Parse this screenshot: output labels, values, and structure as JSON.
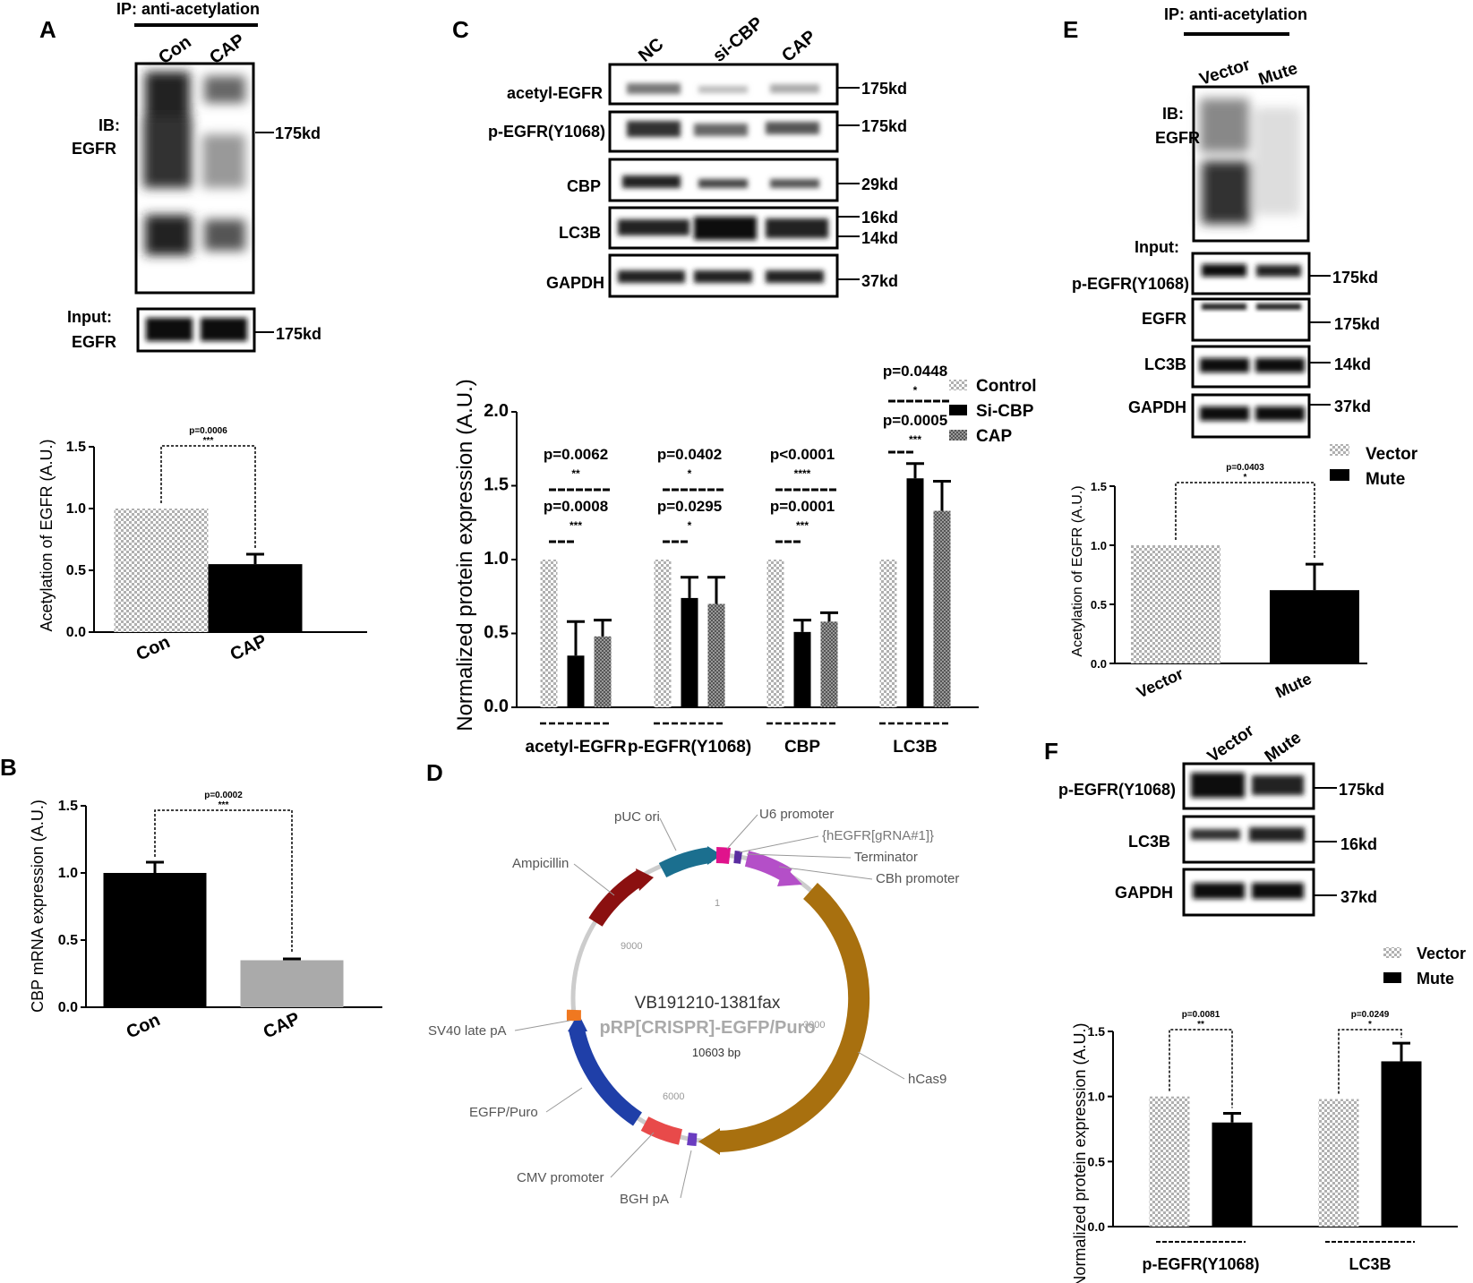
{
  "panel_letters": [
    "A",
    "B",
    "C",
    "D",
    "E",
    "F"
  ],
  "panelA": {
    "ip_title": "IP: anti-acetylation",
    "lanes": [
      "Con",
      "CAP"
    ],
    "ib_label": [
      "IB:",
      "EGFR"
    ],
    "ib_kd": "175kd",
    "input_label": [
      "Input:",
      "EGFR"
    ],
    "input_kd": "175kd"
  },
  "panelC": {
    "lanes": [
      "NC",
      "si-CBP",
      "CAP"
    ],
    "blots": [
      {
        "label": "acetyl-EGFR",
        "kd": [
          "175kd"
        ]
      },
      {
        "label": "p-EGFR(Y1068)",
        "kd": [
          "175kd"
        ]
      },
      {
        "label": "CBP",
        "kd": [
          "29kd"
        ]
      },
      {
        "label": "LC3B",
        "kd": [
          "16kd",
          "14kd"
        ]
      },
      {
        "label": "GAPDH",
        "kd": [
          "37kd"
        ]
      }
    ]
  },
  "panelE": {
    "ip_title": "IP: anti-acetylation",
    "lanes": [
      "Vector",
      "Mute"
    ],
    "ib_label": [
      "IB:",
      "EGFR"
    ],
    "input_label": "Input:",
    "blots": [
      {
        "label": "p-EGFR(Y1068)",
        "kd": "175kd"
      },
      {
        "label": "EGFR",
        "kd": "175kd"
      },
      {
        "label": "LC3B",
        "kd": "14kd"
      },
      {
        "label": "GAPDH",
        "kd": "37kd"
      }
    ]
  },
  "panelF": {
    "lanes": [
      "Vector",
      "Mute"
    ],
    "blots": [
      {
        "label": "p-EGFR(Y1068)",
        "kd": "175kd"
      },
      {
        "label": "LC3B",
        "kd": "16kd"
      },
      {
        "label": "GAPDH",
        "kd": "37kd"
      }
    ]
  },
  "panelD": {
    "name": "VB191210-1381fax",
    "construct": "pRP[CRISPR]-EGFP/Puro",
    "size": "10603 bp",
    "tick_labels": [
      "1",
      "3000",
      "6000",
      "9000"
    ],
    "features": [
      "pUC ori",
      "U6 promoter",
      "{hEGFR[gRNA#1]}",
      "Terminator",
      "CBh promoter",
      "Ampicillin",
      "SV40 late pA",
      "EGFP/Puro",
      "CMV promoter",
      "BGH pA",
      "hCas9"
    ],
    "colors": {
      "pUC ori": "#1b6f8f",
      "U6": "#e0138c",
      "gRNA": "#5a2ca0",
      "CBh": "#b44fc8",
      "hCas9": "#a8700f",
      "BGH": "#6a3cc0",
      "CMV": "#e84a4a",
      "EGFP": "#1f3fa8",
      "SV40": "#f07820",
      "Ampicillin": "#8b1010",
      "backbone": "#cccccc"
    }
  },
  "chart_data": [
    {
      "id": "A",
      "type": "bar",
      "ylabel": "Acetylation of EGFR (A.U.)",
      "categories": [
        "Con",
        "CAP"
      ],
      "values": [
        1.0,
        0.55
      ],
      "errors": [
        0,
        0.08
      ],
      "ylim": [
        0,
        1.5
      ],
      "yticks": [
        "0.0",
        "0.5",
        "1.0",
        "1.5"
      ],
      "fills": [
        "hatch",
        "black"
      ],
      "annotations": [
        {
          "p": "p=0.0006",
          "stars": "***"
        }
      ]
    },
    {
      "id": "B",
      "type": "bar",
      "ylabel": "CBP mRNA expression (A.U.)",
      "categories": [
        "Con",
        "CAP"
      ],
      "values": [
        1.0,
        0.35
      ],
      "errors": [
        0.08,
        0.01
      ],
      "ylim": [
        0,
        1.5
      ],
      "yticks": [
        "0.0",
        "0.5",
        "1.0",
        "1.5"
      ],
      "fills": [
        "black",
        "gray"
      ],
      "annotations": [
        {
          "p": "p=0.0002",
          "stars": "***"
        }
      ]
    },
    {
      "id": "C",
      "type": "bar",
      "ylabel": "Normalized protein expression (A.U.)",
      "categories": [
        "acetyl-EGFR",
        "p-EGFR(Y1068)",
        "CBP",
        "LC3B"
      ],
      "series": [
        {
          "name": "Control",
          "values": [
            1.0,
            1.0,
            1.0,
            1.0
          ],
          "errors": [
            0,
            0,
            0,
            0
          ]
        },
        {
          "name": "Si-CBP",
          "values": [
            0.35,
            0.74,
            0.51,
            1.55
          ],
          "errors": [
            0.23,
            0.14,
            0.08,
            0.1
          ]
        },
        {
          "name": "CAP",
          "values": [
            0.48,
            0.7,
            0.58,
            1.33
          ],
          "errors": [
            0.11,
            0.18,
            0.06,
            0.2
          ]
        }
      ],
      "ylim": [
        0,
        2.0
      ],
      "yticks": [
        "0.0",
        "0.5",
        "1.0",
        "1.5",
        "2.0"
      ],
      "annotations": [
        {
          "p1": "p=0.0062",
          "s1": "**",
          "p2": "p=0.0008",
          "s2": "***"
        },
        {
          "p1": "p=0.0402",
          "s1": "*",
          "p2": "p=0.0295",
          "s2": "*"
        },
        {
          "p1": "p<0.0001",
          "s1": "****",
          "p2": "p=0.0001",
          "s2": "***"
        },
        {
          "p1": "p=0.0448",
          "s1": "*",
          "p2": "p=0.0005",
          "s2": "***"
        }
      ]
    },
    {
      "id": "E",
      "type": "bar",
      "ylabel": "Acetylation of EGFR (A.U.)",
      "categories": [
        "Vector",
        "Mute"
      ],
      "values": [
        1.0,
        0.62
      ],
      "errors": [
        0,
        0.22
      ],
      "ylim": [
        0,
        1.5
      ],
      "yticks": [
        "0.0",
        "0.5",
        "1.0",
        "1.5"
      ],
      "legend": [
        "Vector",
        "Mute"
      ],
      "annotations": [
        {
          "p": "p=0.0403",
          "stars": "*"
        }
      ]
    },
    {
      "id": "F",
      "type": "bar",
      "ylabel": "Normalized protein expression (A.U.)",
      "categories": [
        "p-EGFR(Y1068)",
        "LC3B"
      ],
      "series": [
        {
          "name": "Vector",
          "values": [
            1.0,
            0.98
          ],
          "errors": [
            0,
            0
          ]
        },
        {
          "name": "Mute",
          "values": [
            0.8,
            1.27
          ],
          "errors": [
            0.07,
            0.14
          ]
        }
      ],
      "ylim": [
        0,
        1.5
      ],
      "yticks": [
        "0.0",
        "0.5",
        "1.0",
        "1.5"
      ],
      "annotations": [
        {
          "p": "p=0.0081",
          "stars": "**"
        },
        {
          "p": "p=0.0249",
          "stars": "*"
        }
      ]
    }
  ]
}
